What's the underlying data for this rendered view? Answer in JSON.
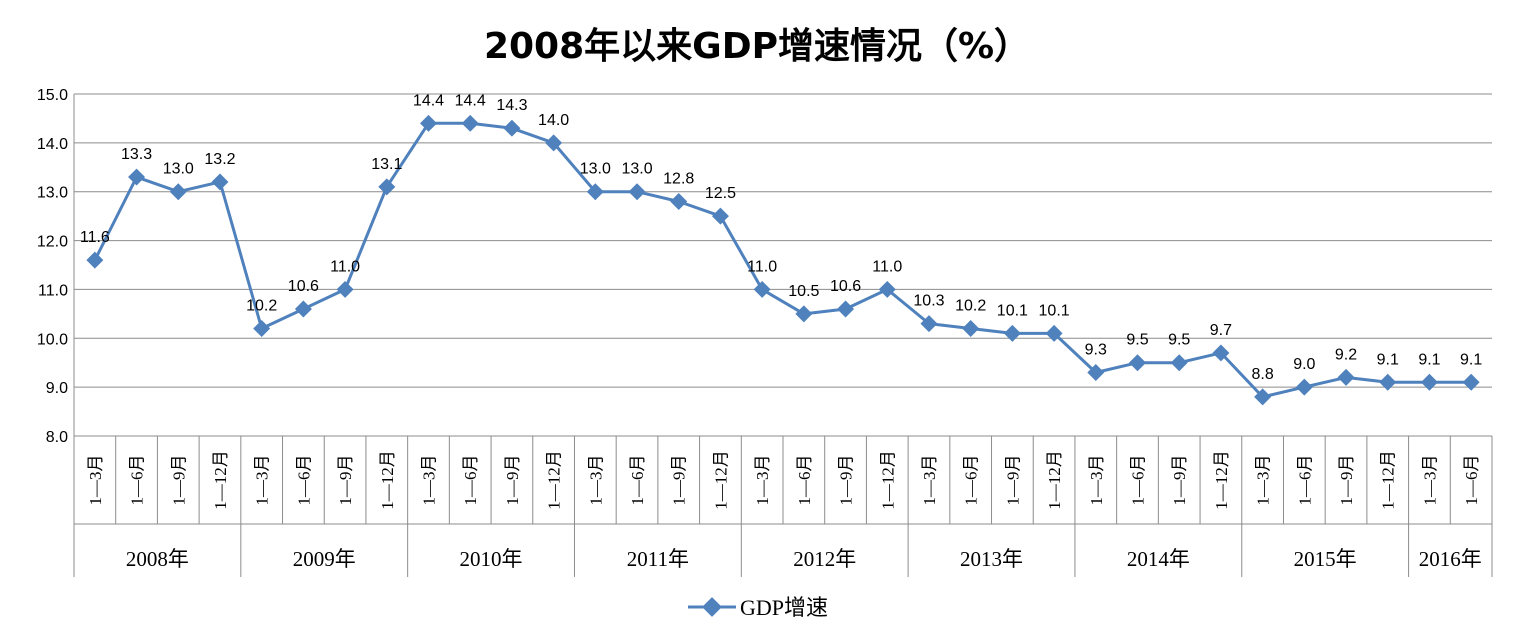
{
  "chart_data": {
    "type": "line",
    "title": "2008年以来GDP增速情况（%）",
    "xlabel": "",
    "ylabel": "",
    "ylim": [
      8.0,
      15.0
    ],
    "y_ticks": [
      "8.0",
      "9.0",
      "10.0",
      "11.0",
      "12.0",
      "13.0",
      "14.0",
      "15.0"
    ],
    "grid": true,
    "legend_position": "bottom",
    "series_color": "#4F81BD",
    "categories": [
      "1—3月",
      "1—6月",
      "1—9月",
      "1—12月",
      "1—3月",
      "1—6月",
      "1—9月",
      "1—12月",
      "1—3月",
      "1—6月",
      "1—9月",
      "1—12月",
      "1—3月",
      "1—6月",
      "1—9月",
      "1—12月",
      "1—3月",
      "1—6月",
      "1—9月",
      "1—12月",
      "1—3月",
      "1—6月",
      "1—9月",
      "1—12月",
      "1—3月",
      "1—6月",
      "1—9月",
      "1—12月",
      "1—3月",
      "1—6月",
      "1—9月",
      "1—12月",
      "1—3月",
      "1—6月"
    ],
    "years": [
      {
        "label": "2008年",
        "count": 4
      },
      {
        "label": "2009年",
        "count": 4
      },
      {
        "label": "2010年",
        "count": 4
      },
      {
        "label": "2011年",
        "count": 4
      },
      {
        "label": "2012年",
        "count": 4
      },
      {
        "label": "2013年",
        "count": 4
      },
      {
        "label": "2014年",
        "count": 4
      },
      {
        "label": "2015年",
        "count": 4
      },
      {
        "label": "2016年",
        "count": 2
      }
    ],
    "series": [
      {
        "name": "GDP增速",
        "values": [
          11.6,
          13.3,
          13.0,
          13.2,
          10.2,
          10.6,
          11.0,
          13.1,
          14.4,
          14.4,
          14.3,
          14.0,
          13.0,
          13.0,
          12.8,
          12.5,
          11.0,
          10.5,
          10.6,
          11.0,
          10.3,
          10.2,
          10.1,
          10.1,
          9.3,
          9.5,
          9.5,
          9.7,
          8.8,
          9.0,
          9.2,
          9.1,
          9.1,
          9.1
        ],
        "labels": [
          "11.6",
          "13.3",
          "13.0",
          "13.2",
          "10.2",
          "10.6",
          "11.0",
          "13.1",
          "14.4",
          "14.4",
          "14.3",
          "14.0",
          "13.0",
          "13.0",
          "12.8",
          "12.5",
          "11.0",
          "10.5",
          "10.6",
          "11.0",
          "10.3",
          "10.2",
          "10.1",
          "10.1",
          "9.3",
          "9.5",
          "9.5",
          "9.7",
          "8.8",
          "9.0",
          "9.2",
          "9.1",
          "9.1",
          "9.1"
        ]
      }
    ]
  }
}
